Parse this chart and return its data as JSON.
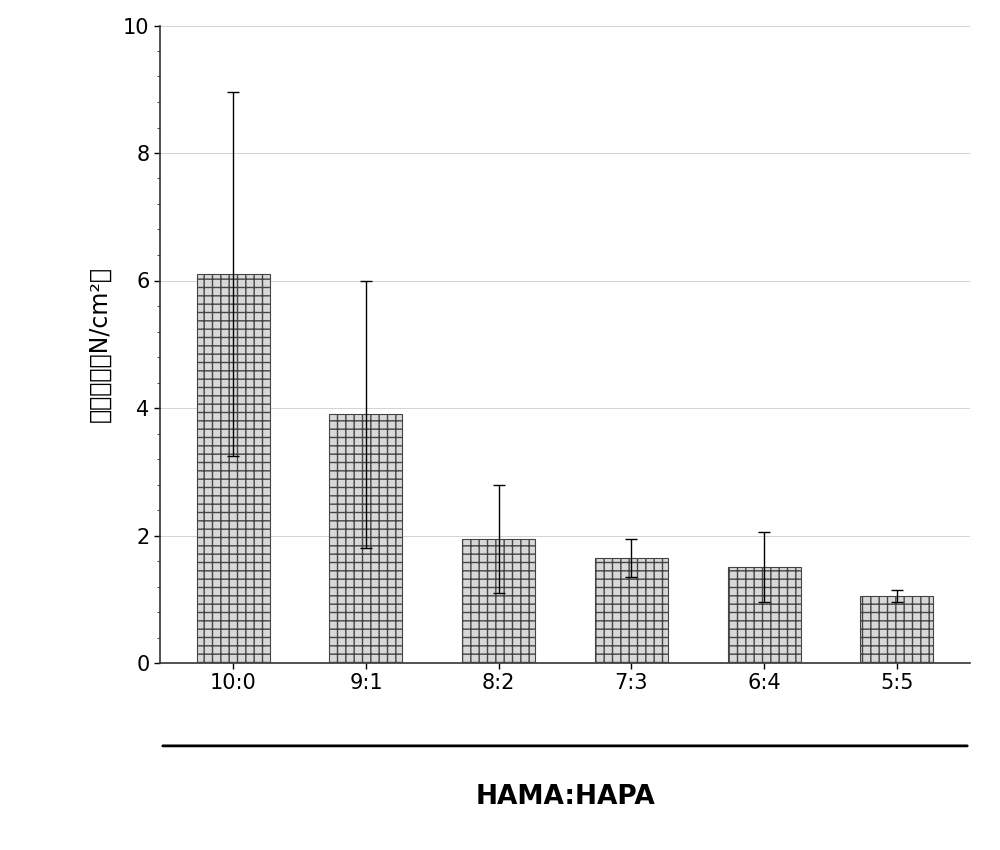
{
  "categories": [
    "10:0",
    "9:1",
    "8:2",
    "7:3",
    "6:4",
    "5:5"
  ],
  "values": [
    6.1,
    3.9,
    1.95,
    1.65,
    1.5,
    1.05
  ],
  "errors_up": [
    2.85,
    2.1,
    0.85,
    0.3,
    0.55,
    0.1
  ],
  "errors_down": [
    2.85,
    2.1,
    0.85,
    0.3,
    0.55,
    0.1
  ],
  "ylabel": "拉伸强度（N/cm²）",
  "xlabel": "HAMA:HAPA",
  "ylim": [
    0,
    10
  ],
  "yticks": [
    0,
    2,
    4,
    6,
    8,
    10
  ],
  "bar_color": "#d8d8d8",
  "bar_edgecolor": "#444444",
  "hatch": ".....",
  "background_color": "#ffffff",
  "figure_background": "#ffffff",
  "ylabel_fontsize": 17,
  "xlabel_fontsize": 19,
  "tick_fontsize": 15,
  "bar_width": 0.55,
  "grid_color": "#cccccc",
  "spine_color": "#333333"
}
